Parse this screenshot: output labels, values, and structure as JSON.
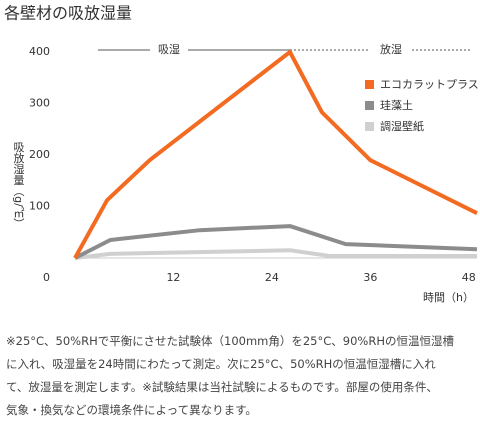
{
  "chart_data": {
    "type": "line",
    "title": "各壁材の吸放湿量",
    "x_label": "時間（h）",
    "y_label": "吸放湿量（g/㎡）",
    "xlim": [
      0,
      49
    ],
    "xticks": [
      12,
      24,
      36,
      48
    ],
    "ylim": [
      0,
      400
    ],
    "yticks": [
      0,
      100,
      200,
      300,
      400
    ],
    "annotations": [
      "吸湿",
      "放湿"
    ],
    "series": [
      {
        "name": "エコカラットプラス",
        "color": "#f26b21",
        "x": [
          0,
          3.9,
          9.1,
          26.2,
          30.1,
          36,
          49
        ],
        "values": [
          0,
          112,
          190,
          400,
          283,
          190,
          87
        ]
      },
      {
        "name": "珪藻土",
        "color": "#8c8c8c",
        "x": [
          0,
          4.3,
          15.2,
          26.2,
          33,
          49
        ],
        "values": [
          0,
          35,
          54,
          62,
          27,
          17
        ]
      },
      {
        "name": "調湿壁紙",
        "color": "#d0d0d0",
        "x": [
          0,
          4.3,
          26.2,
          31,
          49
        ],
        "values": [
          0,
          8,
          15,
          4,
          4
        ]
      }
    ]
  },
  "footnote": [
    "※25°C、50%RHで平衡にさせた試験体（100mm角）を25°C、90%RHの恒温恒湿槽",
    "に入れ、吸湿量を24時間にわたって測定。次に25°C、50%RHの恒温恒湿槽に入れ",
    "て、放湿量を測定します。※試験結果は当社試験によるものです。部屋の使用条件、",
    "気象・換気などの環境条件によって異なります。"
  ]
}
